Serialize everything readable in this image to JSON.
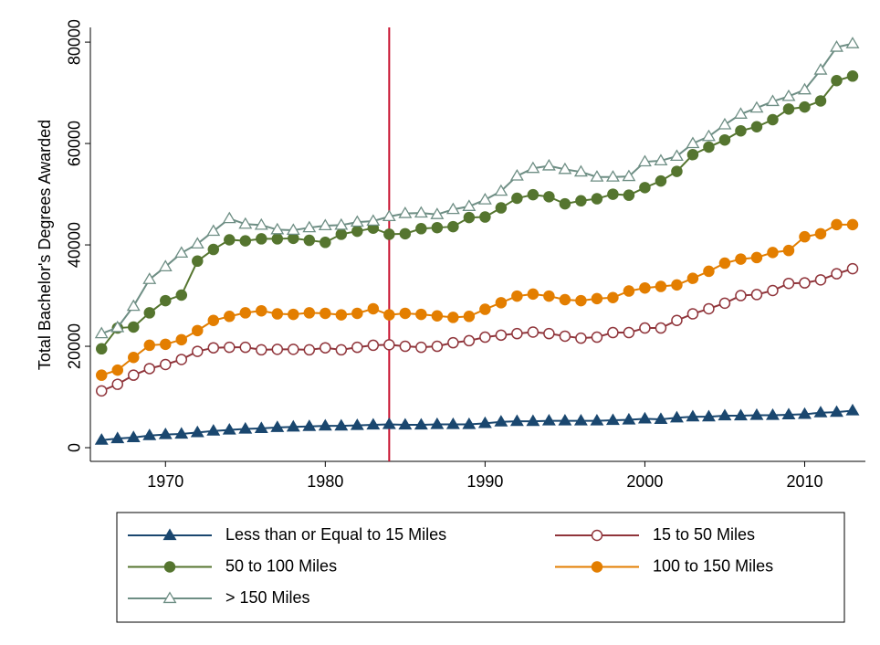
{
  "chart_data": {
    "type": "line",
    "y_label": "Total Bachelor's Degrees Awarded",
    "x": [
      1966,
      1967,
      1968,
      1969,
      1970,
      1971,
      1972,
      1973,
      1974,
      1975,
      1976,
      1977,
      1978,
      1979,
      1980,
      1981,
      1982,
      1983,
      1984,
      1985,
      1986,
      1987,
      1988,
      1989,
      1990,
      1991,
      1992,
      1993,
      1994,
      1995,
      1996,
      1997,
      1998,
      1999,
      2000,
      2001,
      2002,
      2003,
      2004,
      2005,
      2006,
      2007,
      2008,
      2009,
      2010,
      2011,
      2012,
      2013
    ],
    "series": [
      {
        "name": "Less than or Equal to 15 Miles",
        "color": "#1a476f",
        "marker": "triangle",
        "hollow": false,
        "values": [
          1500,
          1800,
          2000,
          2400,
          2600,
          2700,
          3000,
          3300,
          3500,
          3700,
          3800,
          4000,
          4100,
          4200,
          4300,
          4300,
          4400,
          4500,
          4600,
          4500,
          4500,
          4600,
          4600,
          4600,
          4800,
          5100,
          5200,
          5200,
          5300,
          5300,
          5300,
          5300,
          5400,
          5500,
          5700,
          5600,
          5900,
          6100,
          6100,
          6300,
          6300,
          6400,
          6400,
          6500,
          6600,
          6900,
          7000,
          7300
        ]
      },
      {
        "name": "15 to 50 Miles",
        "color": "#90353b",
        "marker": "circle",
        "hollow": true,
        "values": [
          11200,
          12500,
          14300,
          15600,
          16400,
          17400,
          19000,
          19700,
          19800,
          19800,
          19300,
          19400,
          19400,
          19300,
          19700,
          19300,
          19800,
          20200,
          20300,
          20000,
          19800,
          20000,
          20700,
          21100,
          21800,
          22200,
          22500,
          22800,
          22500,
          22000,
          21600,
          21800,
          22700,
          22700,
          23600,
          23600,
          25100,
          26400,
          27400,
          28500,
          30000,
          30200,
          31000,
          32400,
          32500,
          33100,
          34300,
          35300
        ]
      },
      {
        "name": "50 to 100 Miles",
        "color": "#55752f",
        "marker": "circle",
        "hollow": false,
        "values": [
          19500,
          23600,
          23800,
          26600,
          29000,
          30100,
          36800,
          39100,
          41000,
          40800,
          41200,
          41200,
          41300,
          40900,
          40500,
          42100,
          42700,
          43300,
          42100,
          42200,
          43200,
          43400,
          43600,
          45400,
          45500,
          47300,
          49200,
          49900,
          49500,
          48100,
          48700,
          49100,
          50000,
          49800,
          51300,
          52600,
          54500,
          57800,
          59300,
          60700,
          62500,
          63300,
          64700,
          66800,
          67200,
          68400,
          72400,
          73300
        ]
      },
      {
        "name": "100 to 150 Miles",
        "color": "#e37e00",
        "marker": "circle",
        "hollow": false,
        "values": [
          14300,
          15300,
          17800,
          20200,
          20400,
          21300,
          23100,
          25100,
          25900,
          26600,
          27000,
          26400,
          26300,
          26600,
          26500,
          26200,
          26500,
          27400,
          26200,
          26500,
          26300,
          26000,
          25700,
          25900,
          27300,
          28600,
          29900,
          30300,
          29900,
          29200,
          29000,
          29400,
          29600,
          30900,
          31500,
          31800,
          32100,
          33400,
          34800,
          36400,
          37200,
          37500,
          38500,
          38900,
          41600,
          42200,
          44000,
          44000
        ]
      },
      {
        "name": "> 150 Miles",
        "color": "#6e8e84",
        "marker": "triangle",
        "hollow": true,
        "values": [
          22500,
          23700,
          27900,
          33200,
          35700,
          38400,
          40200,
          42700,
          45200,
          44100,
          43900,
          43000,
          42900,
          43400,
          43800,
          43900,
          44500,
          44700,
          45600,
          46200,
          46300,
          46000,
          47000,
          47600,
          48900,
          50600,
          53600,
          55100,
          55600,
          54900,
          54400,
          53400,
          53400,
          53500,
          56400,
          56600,
          57500,
          60000,
          61400,
          63700,
          65800,
          67000,
          68300,
          69300,
          70600,
          74500,
          79000,
          79700
        ]
      }
    ],
    "xlim": [
      1965.3,
      2013.8
    ],
    "xticks": [
      1970,
      1980,
      1990,
      2000,
      2010
    ],
    "ylim": [
      -2700,
      82900
    ],
    "yticks": [
      0,
      20000,
      40000,
      60000,
      80000
    ],
    "vline": {
      "value": 1984,
      "color": "#c8102e"
    },
    "legend_position": "bottom",
    "legend_columns": 2
  }
}
